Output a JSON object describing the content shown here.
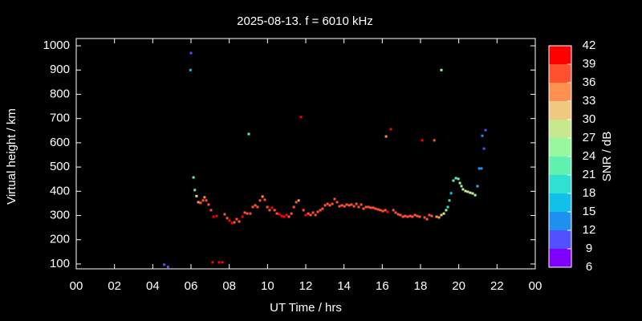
{
  "chart_data": {
    "type": "scatter",
    "title": "2025-08-13. f = 6010 kHz",
    "x_label": "UT Time / hrs",
    "y_label": "Virtual height / km",
    "xlim": [
      0,
      24
    ],
    "xticks": [
      {
        "value": 0,
        "label": "00"
      },
      {
        "value": 2,
        "label": "02"
      },
      {
        "value": 4,
        "label": "04"
      },
      {
        "value": 6,
        "label": "06"
      },
      {
        "value": 8,
        "label": "08"
      },
      10,
      12,
      14,
      16,
      18,
      20,
      22,
      {
        "value": 24,
        "label": "00"
      }
    ],
    "ylim": [
      80,
      1030
    ],
    "yticks": [
      100,
      200,
      300,
      400,
      500,
      600,
      700,
      800,
      900,
      1000
    ],
    "colorbar": {
      "label": "SNR / dB",
      "lim": [
        6,
        42
      ],
      "ticks": [
        6,
        9,
        12,
        15,
        18,
        21,
        24,
        27,
        30,
        33,
        36,
        39,
        42
      ],
      "colors": [
        "#8000ff",
        "#5050ff",
        "#2090f0",
        "#10c0e8",
        "#30e0d0",
        "#60f0b0",
        "#98f8a0",
        "#c8e890",
        "#f0c880",
        "#ff9050",
        "#ff5030",
        "#ff0000"
      ]
    },
    "x": [
      4.6,
      4.8,
      6.0,
      5.97,
      6.13,
      6.2,
      6.29,
      6.38,
      6.5,
      6.63,
      6.71,
      6.8,
      6.92,
      7.05,
      7.18,
      7.34,
      7.13,
      7.47,
      7.64,
      7.76,
      7.89,
      8.01,
      8.14,
      8.27,
      8.39,
      8.52,
      8.69,
      8.81,
      8.94,
      9.02,
      9.1,
      9.23,
      9.36,
      9.48,
      9.61,
      9.74,
      9.86,
      9.99,
      10.11,
      10.24,
      10.37,
      10.49,
      10.62,
      10.74,
      10.87,
      11.0,
      11.12,
      11.25,
      11.38,
      11.5,
      11.63,
      11.75,
      11.88,
      12.0,
      12.13,
      12.25,
      12.38,
      12.51,
      12.63,
      12.76,
      12.88,
      13.01,
      13.14,
      13.26,
      13.39,
      13.51,
      13.64,
      13.76,
      13.89,
      14.02,
      14.14,
      14.27,
      14.39,
      14.52,
      14.65,
      14.77,
      14.9,
      15.02,
      15.15,
      15.28,
      15.4,
      15.53,
      15.65,
      15.78,
      15.9,
      16.03,
      16.16,
      16.2,
      16.28,
      16.45,
      16.58,
      16.7,
      16.83,
      16.95,
      17.08,
      17.2,
      17.33,
      17.46,
      17.58,
      17.71,
      17.83,
      17.96,
      18.09,
      18.21,
      18.34,
      18.46,
      18.59,
      18.72,
      18.84,
      18.97,
      19.09,
      19.09,
      19.22,
      19.34,
      19.43,
      19.51,
      19.6,
      19.72,
      19.85,
      19.98,
      20.06,
      20.14,
      20.22,
      20.35,
      20.47,
      20.6,
      20.73,
      20.86,
      20.98,
      21.07,
      21.19,
      21.23,
      21.32,
      21.4
    ],
    "values": [
      97,
      88,
      970,
      900,
      457,
      405,
      380,
      355,
      352,
      362,
      375,
      362,
      345,
      322,
      295,
      298,
      107,
      107,
      107,
      305,
      289,
      279,
      269,
      272,
      285,
      275,
      295,
      312,
      308,
      636,
      308,
      335,
      342,
      335,
      362,
      378,
      365,
      335,
      322,
      332,
      322,
      308,
      305,
      298,
      295,
      302,
      295,
      308,
      335,
      355,
      362,
      706,
      322,
      302,
      308,
      302,
      312,
      302,
      315,
      322,
      328,
      342,
      348,
      342,
      348,
      368,
      355,
      338,
      342,
      338,
      345,
      342,
      345,
      338,
      348,
      335,
      345,
      328,
      335,
      335,
      332,
      332,
      328,
      325,
      322,
      318,
      322,
      626,
      315,
      656,
      322,
      312,
      305,
      302,
      295,
      298,
      295,
      298,
      295,
      302,
      298,
      295,
      610,
      292,
      285,
      302,
      298,
      610,
      295,
      292,
      900,
      302,
      308,
      322,
      335,
      362,
      392,
      444,
      454,
      451,
      434,
      421,
      408,
      401,
      398,
      394,
      391,
      384,
      421,
      494,
      494,
      629,
      576,
      652
    ],
    "snr": [
      10,
      10,
      10,
      16,
      22,
      22,
      28,
      34,
      37,
      38,
      33,
      36,
      38,
      38,
      40,
      39,
      40,
      40,
      40,
      38,
      38,
      39,
      39,
      38,
      37,
      38,
      39,
      38,
      38,
      22,
      38,
      37,
      37,
      38,
      36,
      33,
      36,
      38,
      38,
      39,
      38,
      38,
      39,
      39,
      39,
      39,
      38,
      38,
      38,
      37,
      34,
      40,
      38,
      39,
      38,
      38,
      38,
      38,
      38,
      38,
      38,
      38,
      38,
      38,
      38,
      36,
      38,
      38,
      38,
      38,
      38,
      38,
      38,
      38,
      38,
      38,
      38,
      38,
      38,
      37,
      38,
      38,
      38,
      38,
      38,
      38,
      38,
      33,
      39,
      39,
      38,
      38,
      38,
      38,
      38,
      38,
      38,
      38,
      38,
      38,
      38,
      37,
      40,
      38,
      36,
      38,
      37,
      36,
      35,
      33,
      24,
      30,
      28,
      24,
      20,
      18,
      15,
      22,
      22,
      23,
      25,
      25,
      27,
      27,
      28,
      27,
      27,
      26,
      16,
      13,
      14,
      12,
      10,
      10
    ]
  }
}
